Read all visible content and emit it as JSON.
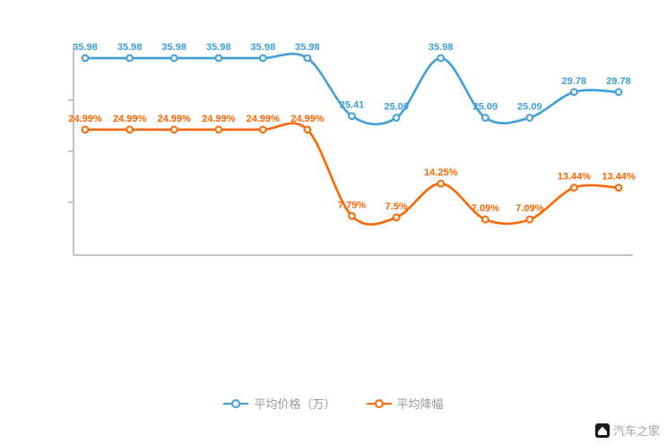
{
  "chart_data": {
    "type": "line",
    "title": "",
    "xlabel": "",
    "ylabel": "",
    "x_labels": [
      "",
      "",
      "",
      "",
      "",
      "",
      "",
      "",
      "",
      "",
      "",
      "",
      ""
    ],
    "series": [
      {
        "name": "平均价格（万）",
        "color": "#3e9fd9",
        "unit": "万",
        "values": [
          35.98,
          35.98,
          35.98,
          35.98,
          35.98,
          35.98,
          25.41,
          25.09,
          35.98,
          25.09,
          25.09,
          29.78,
          29.78
        ],
        "labels": [
          "35.98",
          "35.98",
          "35.98",
          "35.98",
          "35.98",
          "35.98",
          "25.41",
          "25.09",
          "35.98",
          "25.09",
          "25.09",
          "29.78",
          "29.78"
        ]
      },
      {
        "name": "平均降幅",
        "color": "#ff6600",
        "unit": "%",
        "values": [
          24.99,
          24.99,
          24.99,
          24.99,
          24.99,
          24.99,
          7.79,
          7.5,
          14.25,
          7.09,
          7.09,
          13.44,
          13.44
        ],
        "labels": [
          "24.99%",
          "24.99%",
          "24.99%",
          "24.99%",
          "24.99%",
          "24.99%",
          "7.79%",
          "7.5%",
          "14.25%",
          "7.09%",
          "7.09%",
          "13.44%",
          "13.44%"
        ]
      }
    ],
    "ylim_price": [
      0,
      37.6
    ],
    "ylim_percent": [
      0,
      41
    ],
    "grid": false,
    "legend_position": "bottom",
    "axis_color": "#c4c4c4"
  },
  "legend": {
    "items": [
      {
        "label": "平均价格（万）",
        "color": "#3e9fd9"
      },
      {
        "label": "平均降幅",
        "color": "#ff6600"
      }
    ]
  },
  "watermark": {
    "text": "汽车之家"
  }
}
